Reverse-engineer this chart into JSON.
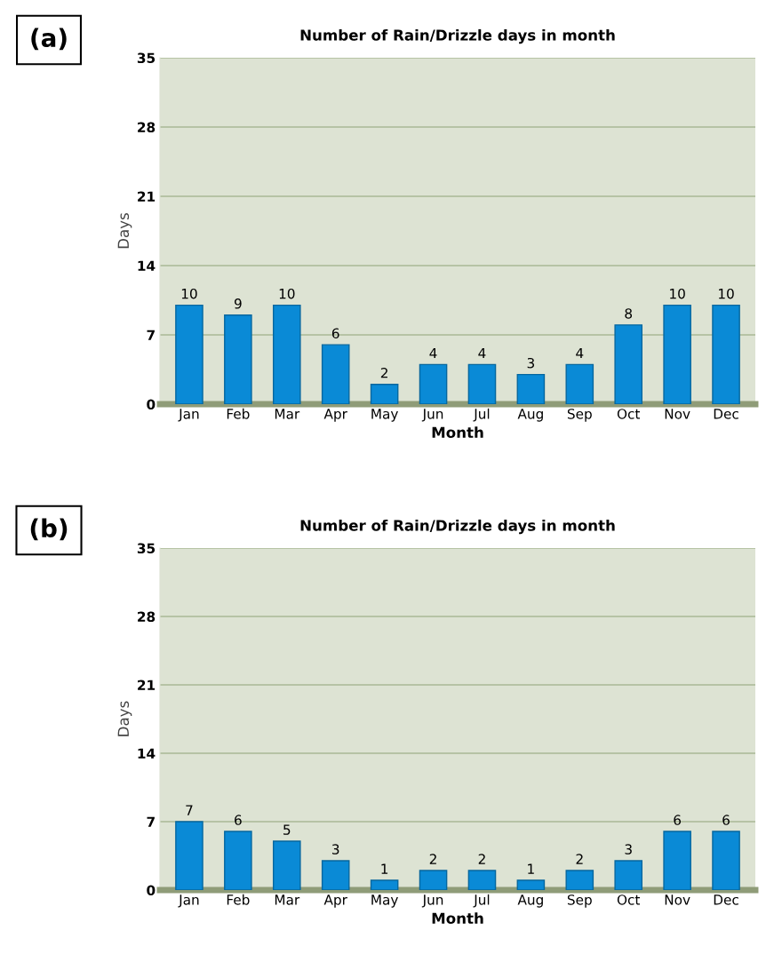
{
  "chart_data": [
    {
      "type": "bar",
      "title": "Number of Rain/Drizzle days in month",
      "xlabel": "Month",
      "ylabel": "Days",
      "annotations": [
        "(a)"
      ],
      "categories": [
        "Jan",
        "Feb",
        "Mar",
        "Apr",
        "May",
        "Jun",
        "Jul",
        "Aug",
        "Sep",
        "Oct",
        "Nov",
        "Dec"
      ],
      "values": [
        10,
        9,
        10,
        6,
        2,
        4,
        4,
        3,
        4,
        8,
        10,
        10
      ],
      "color": "#0a8ad6",
      "ylim": [
        0,
        35
      ],
      "yticks": [
        0,
        7,
        14,
        21,
        28,
        35
      ],
      "grid": "y",
      "data_labels": true
    },
    {
      "type": "bar",
      "title": "Number of Rain/Drizzle days in month",
      "xlabel": "Month",
      "ylabel": "Days",
      "annotations": [
        "(b)"
      ],
      "categories": [
        "Jan",
        "Feb",
        "Mar",
        "Apr",
        "May",
        "Jun",
        "Jul",
        "Aug",
        "Sep",
        "Oct",
        "Nov",
        "Dec"
      ],
      "values": [
        7,
        6,
        5,
        3,
        1,
        2,
        2,
        1,
        2,
        3,
        6,
        6
      ],
      "color": "#0a8ad6",
      "ylim": [
        0,
        35
      ],
      "yticks": [
        0,
        7,
        14,
        21,
        28,
        35
      ],
      "grid": "y",
      "data_labels": true
    }
  ]
}
